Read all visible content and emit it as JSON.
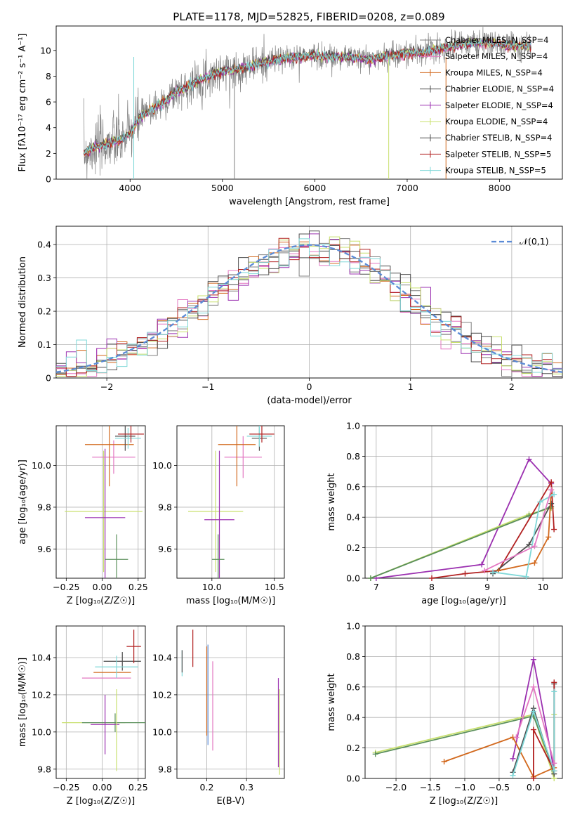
{
  "figure_title": "PLATE=1178, MJD=52825, FIBERID=0208, z=0.089",
  "colors": [
    "#808080",
    "#e377c2",
    "#d2691e",
    "#4d4d4d",
    "#9b30b0",
    "#c8e06e",
    "#505050",
    "#b22222",
    "#7fd8d8"
  ],
  "chart_data": [
    {
      "id": "spectrum",
      "type": "line",
      "title": "PLATE=1178, MJD=52825, FIBERID=0208, z=0.089",
      "xlabel": "wavelength [Angstrom, rest frame]",
      "ylabel": "Flux [fλ10⁻¹⁷ erg cm⁻² s⁻¹ A⁻¹]",
      "xlim": [
        3200,
        8680
      ],
      "ylim": [
        0,
        11.9
      ],
      "xticks": [
        4000,
        5000,
        6000,
        7000,
        8000
      ],
      "yticks": [
        0,
        2,
        4,
        6,
        8,
        10
      ],
      "x_range": [
        3500,
        8340
      ],
      "continuum": {
        "x": [
          3500,
          3600,
          3700,
          3800,
          3900,
          4000,
          4100,
          4200,
          4300,
          4400,
          4500,
          4600,
          4800,
          5000,
          5200,
          5400,
          5600,
          5800,
          6000,
          6200,
          6400,
          6600,
          6800,
          7000,
          7200,
          7400,
          7600,
          7800,
          8000,
          8200,
          8340
        ],
        "y": [
          2.0,
          2.4,
          2.6,
          2.9,
          3.0,
          3.6,
          4.7,
          5.3,
          5.7,
          6.2,
          6.8,
          7.1,
          7.9,
          8.4,
          8.6,
          9.0,
          9.3,
          9.5,
          9.6,
          9.5,
          9.5,
          9.3,
          9.6,
          9.8,
          9.9,
          10.2,
          10.5,
          10.6,
          10.5,
          10.4,
          10.3
        ]
      },
      "series": [
        {
          "name": "Chabrier MILES, N_SSP=4",
          "color": "#808080"
        },
        {
          "name": "Salpeter MILES, N_SSP=4",
          "color": "#e377c2"
        },
        {
          "name": "Kroupa MILES, N_SSP=4",
          "color": "#d2691e"
        },
        {
          "name": "Chabrier ELODIE, N_SSP=4",
          "color": "#4d4d4d"
        },
        {
          "name": "Salpeter ELODIE, N_SSP=4",
          "color": "#9b30b0"
        },
        {
          "name": "Kroupa ELODIE, N_SSP=4",
          "color": "#c8e06e"
        },
        {
          "name": "Chabrier STELIB, N_SSP=4",
          "color": "#505050"
        },
        {
          "name": "Salpeter STELIB, N_SSP=5",
          "color": "#b22222"
        },
        {
          "name": "Kroupa STELIB, N_SSP=5",
          "color": "#7fd8d8"
        }
      ],
      "legend_loc": "upper right"
    },
    {
      "id": "residuals",
      "type": "histogram",
      "xlabel": "(data-model)/error",
      "ylabel": "Normed distribution",
      "xlim": [
        -2.5,
        2.5
      ],
      "ylim": [
        0,
        0.455
      ],
      "xticks": [
        -2,
        -1,
        0,
        1,
        2
      ],
      "yticks": [
        0.0,
        0.1,
        0.2,
        0.3,
        0.4
      ],
      "bin_width": 0.1,
      "reference": {
        "name": "𝒩(0,1)",
        "color": "#5b8bd6"
      },
      "legend_loc": "upper right",
      "grid": true
    },
    {
      "id": "age_vs_z",
      "type": "scatter",
      "xlabel": "Z [log₁₀(Z/Z☉)]",
      "ylabel": "age  [log₁₀(age/yr)]",
      "xlim": [
        -0.32,
        0.3
      ],
      "ylim": [
        9.46,
        10.19
      ],
      "xticks": [
        -0.25,
        0.0,
        0.25
      ],
      "yticks": [
        9.6,
        9.8,
        10.0
      ],
      "points": [
        {
          "x": 0.01,
          "y": 9.78,
          "xerr": 0.27,
          "yerr": 0.29,
          "color": "#c8e06e"
        },
        {
          "x": 0.02,
          "y": 9.75,
          "xerr": 0.14,
          "yerr": 0.33,
          "color": "#9b30b0"
        },
        {
          "x": 0.1,
          "y": 9.55,
          "xerr": 0.08,
          "yerr": 0.12,
          "color": "#5a8f5a"
        },
        {
          "x": 0.08,
          "y": 10.04,
          "xerr": 0.15,
          "yerr": 0.08,
          "color": "#e377c2"
        },
        {
          "x": 0.05,
          "y": 10.1,
          "xerr": 0.17,
          "yerr": 0.2,
          "color": "#d2691e"
        },
        {
          "x": 0.16,
          "y": 10.14,
          "xerr": 0.07,
          "yerr": 0.07,
          "color": "#4d4d4d"
        },
        {
          "x": 0.18,
          "y": 10.13,
          "xerr": 0.09,
          "yerr": 0.05,
          "color": "#7fd8d8"
        },
        {
          "x": 0.2,
          "y": 10.15,
          "xerr": 0.09,
          "yerr": 0.04,
          "color": "#b22222"
        }
      ]
    },
    {
      "id": "age_vs_mass",
      "type": "scatter",
      "xlabel": "mass [log₁₀(M/M☉)]",
      "ylabel": "",
      "xlim": [
        9.72,
        10.58
      ],
      "ylim": [
        9.46,
        10.19
      ],
      "xticks": [
        10.0,
        10.5
      ],
      "yticks": [
        9.6,
        9.8,
        10.0
      ],
      "points": [
        {
          "x": 10.03,
          "y": 9.78,
          "xerr": 0.22,
          "yerr": 0.29,
          "color": "#c8e06e"
        },
        {
          "x": 10.06,
          "y": 9.74,
          "xerr": 0.12,
          "yerr": 0.33,
          "color": "#9b30b0"
        },
        {
          "x": 10.05,
          "y": 9.55,
          "xerr": 0.05,
          "yerr": 0.12,
          "color": "#5a8f5a"
        },
        {
          "x": 10.25,
          "y": 10.04,
          "xerr": 0.15,
          "yerr": 0.1,
          "color": "#e377c2"
        },
        {
          "x": 10.2,
          "y": 10.1,
          "xerr": 0.15,
          "yerr": 0.2,
          "color": "#d2691e"
        },
        {
          "x": 10.38,
          "y": 10.13,
          "xerr": 0.06,
          "yerr": 0.06,
          "color": "#4d4d4d"
        },
        {
          "x": 10.38,
          "y": 10.14,
          "xerr": 0.1,
          "yerr": 0.05,
          "color": "#7fd8d8"
        },
        {
          "x": 10.4,
          "y": 10.15,
          "xerr": 0.1,
          "yerr": 0.04,
          "color": "#b22222"
        }
      ]
    },
    {
      "id": "weight_vs_age",
      "type": "line",
      "xlabel": "age  [log₁₀(age/yr)]",
      "ylabel": "mass weight",
      "xlim": [
        6.8,
        10.35
      ],
      "ylim": [
        0,
        1.0
      ],
      "xticks": [
        7,
        8,
        9,
        10
      ],
      "yticks": [
        0.0,
        0.2,
        0.4,
        0.6,
        0.8,
        1.0
      ],
      "series": [
        {
          "color": "#9b30b0",
          "x": [
            7.0,
            8.9,
            9.75,
            10.15
          ],
          "y": [
            0.0,
            0.09,
            0.78,
            0.62
          ]
        },
        {
          "color": "#c8e06e",
          "x": [
            6.9,
            9.75,
            10.15
          ],
          "y": [
            0.0,
            0.42,
            0.46
          ]
        },
        {
          "color": "#5a8f5a",
          "x": [
            6.9,
            9.75,
            10.15
          ],
          "y": [
            0.0,
            0.41,
            0.47
          ]
        },
        {
          "color": "#b22222",
          "x": [
            8.0,
            8.6,
            9.2,
            10.15,
            10.2
          ],
          "y": [
            0.0,
            0.03,
            0.05,
            0.63,
            0.32
          ]
        },
        {
          "color": "#4d4d4d",
          "x": [
            9.1,
            9.75,
            10.15
          ],
          "y": [
            0.03,
            0.22,
            0.49
          ]
        },
        {
          "color": "#d2691e",
          "x": [
            9.2,
            9.85,
            10.1,
            10.15
          ],
          "y": [
            0.05,
            0.1,
            0.27,
            0.58
          ]
        },
        {
          "color": "#7fd8d8",
          "x": [
            9.1,
            9.7,
            9.95,
            10.2
          ],
          "y": [
            0.04,
            0.01,
            0.5,
            0.55
          ]
        },
        {
          "color": "#e377c2",
          "x": [
            8.95,
            9.85,
            10.15
          ],
          "y": [
            0.05,
            0.21,
            0.58
          ]
        }
      ]
    },
    {
      "id": "mass_vs_z",
      "type": "scatter",
      "xlabel": "Z [log₁₀(Z/Z☉)]",
      "ylabel": "mass [log₁₀(M/M☉)]",
      "xlim": [
        -0.32,
        0.3
      ],
      "ylim": [
        9.75,
        10.57
      ],
      "xticks": [
        -0.25,
        0.0,
        0.25
      ],
      "yticks": [
        9.8,
        10.0,
        10.2,
        10.4
      ],
      "points": [
        {
          "x": -0.06,
          "y": 10.05,
          "xerr": 0.22,
          "yerr": 0.0,
          "color": "#c8e06e"
        },
        {
          "x": 0.09,
          "y": 10.05,
          "xerr": 0.23,
          "yerr": 0.05,
          "color": "#5a8f5a"
        },
        {
          "x": 0.02,
          "y": 10.04,
          "xerr": 0.1,
          "yerr": 0.16,
          "color": "#9b30b0"
        },
        {
          "x": 0.1,
          "y": 10.01,
          "xerr": 0.0,
          "yerr": 0.22,
          "color": "#c8e06e"
        },
        {
          "x": 0.03,
          "y": 10.29,
          "xerr": 0.17,
          "yerr": 0.0,
          "color": "#e377c2"
        },
        {
          "x": 0.07,
          "y": 10.32,
          "xerr": 0.13,
          "yerr": 0.0,
          "color": "#d2691e"
        },
        {
          "x": 0.14,
          "y": 10.38,
          "xerr": 0.13,
          "yerr": 0.05,
          "color": "#4d4d4d"
        },
        {
          "x": 0.1,
          "y": 10.35,
          "xerr": 0.15,
          "yerr": 0.06,
          "color": "#7fd8d8"
        },
        {
          "x": 0.22,
          "y": 10.46,
          "xerr": 0.05,
          "yerr": 0.09,
          "color": "#b22222"
        }
      ]
    },
    {
      "id": "mass_vs_ebv",
      "type": "scatter",
      "xlabel": "E(B-V)",
      "ylabel": "",
      "xlim": [
        0.125,
        0.395
      ],
      "ylim": [
        9.75,
        10.57
      ],
      "xticks": [
        0.2,
        0.3
      ],
      "yticks": [
        9.8,
        10.0,
        10.2,
        10.4
      ],
      "points": [
        {
          "x": 0.138,
          "y": 10.37,
          "xerr": 0.0,
          "yerr": 0.07,
          "color": "#7fd8d8"
        },
        {
          "x": 0.138,
          "y": 10.38,
          "xerr": 0.0,
          "yerr": 0.06,
          "color": "#4d4d4d"
        },
        {
          "x": 0.165,
          "y": 10.45,
          "xerr": 0.0,
          "yerr": 0.1,
          "color": "#b22222"
        },
        {
          "x": 0.2,
          "y": 10.22,
          "xerr": 0.0,
          "yerr": 0.24,
          "color": "#d2691e"
        },
        {
          "x": 0.203,
          "y": 10.2,
          "xerr": 0.0,
          "yerr": 0.27,
          "color": "#5b8bd6"
        },
        {
          "x": 0.215,
          "y": 10.14,
          "xerr": 0.0,
          "yerr": 0.24,
          "color": "#e377c2"
        },
        {
          "x": 0.38,
          "y": 10.05,
          "xerr": 0.0,
          "yerr": 0.24,
          "color": "#9b30b0"
        },
        {
          "x": 0.383,
          "y": 10.0,
          "xerr": 0.0,
          "yerr": 0.23,
          "color": "#c8e06e"
        }
      ]
    },
    {
      "id": "weight_vs_z",
      "type": "line",
      "xlabel": "Z [log₁₀(Z/Z☉)]",
      "ylabel": "mass weight",
      "xlim": [
        -2.45,
        0.42
      ],
      "ylim": [
        0,
        1.0
      ],
      "xticks": [
        -2.0,
        -1.5,
        -1.0,
        -0.5,
        0.0
      ],
      "yticks": [
        0.0,
        0.2,
        0.4,
        0.6,
        0.8,
        1.0
      ],
      "series": [
        {
          "color": "#9b30b0",
          "x": [
            -0.3,
            0.0,
            0.3
          ],
          "y": [
            0.13,
            0.78,
            0.05
          ]
        },
        {
          "color": "#c8e06e",
          "x": [
            -2.3,
            0.0,
            0.3,
            0.3
          ],
          "y": [
            0.17,
            0.42,
            0.0,
            0.42
          ]
        },
        {
          "color": "#5a8f5a",
          "x": [
            -2.3,
            0.0,
            0.3
          ],
          "y": [
            0.16,
            0.41,
            0.05
          ]
        },
        {
          "color": "#d2691e",
          "x": [
            -1.3,
            -0.3,
            0.0,
            0.3
          ],
          "y": [
            0.11,
            0.27,
            0.01,
            0.07
          ]
        },
        {
          "color": "#4d4d4d",
          "x": [
            -0.3,
            0.0,
            0.3,
            0.3
          ],
          "y": [
            0.04,
            0.46,
            0.03,
            0.62
          ]
        },
        {
          "color": "#b22222",
          "x": [
            0.0,
            0.0,
            0.3,
            0.3
          ],
          "y": [
            0.0,
            0.32,
            0.05,
            0.63
          ]
        },
        {
          "color": "#7fd8d8",
          "x": [
            -0.3,
            0.0,
            0.3,
            0.3
          ],
          "y": [
            0.02,
            0.44,
            0.05,
            0.57
          ]
        },
        {
          "color": "#e377c2",
          "x": [
            -0.25,
            0.0,
            0.3
          ],
          "y": [
            0.27,
            0.6,
            0.1
          ]
        }
      ]
    }
  ]
}
